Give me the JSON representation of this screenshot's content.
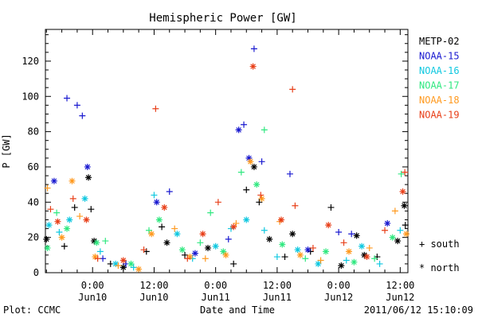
{
  "chart_data": {
    "type": "scatter",
    "title": "Hemispheric Power [GW]",
    "xlabel": "Date and Time",
    "ylabel": "P [GW]",
    "x_unit": "hours relative to 2011-06-10 00:00 UT",
    "xlim": [
      -9.2,
      61.5
    ],
    "ylim": [
      0,
      138
    ],
    "yticks": [
      0,
      20,
      40,
      60,
      80,
      100,
      120
    ],
    "xticks": [
      {
        "x": 0,
        "time": "0:00",
        "date": "Jun10"
      },
      {
        "x": 12,
        "time": "12:00",
        "date": "Jun10"
      },
      {
        "x": 24,
        "time": "0:00",
        "date": "Jun11"
      },
      {
        "x": 36,
        "time": "12:00",
        "date": "Jun11"
      },
      {
        "x": 48,
        "time": "0:00",
        "date": "Jun12"
      },
      {
        "x": 60,
        "time": "12:00",
        "date": "Jun12"
      }
    ],
    "marker_legend": [
      {
        "symbol": "+",
        "label": "south"
      },
      {
        "symbol": "*",
        "label": "north"
      }
    ],
    "series": [
      {
        "name": "METP-02",
        "color": "#000000",
        "points": [
          {
            "x": -9.0,
            "y": 19,
            "m": "*"
          },
          {
            "x": -5.5,
            "y": 15,
            "m": "+"
          },
          {
            "x": -3.5,
            "y": 37,
            "m": "+"
          },
          {
            "x": -0.8,
            "y": 54,
            "m": "*"
          },
          {
            "x": -0.3,
            "y": 36,
            "m": "+"
          },
          {
            "x": 0.3,
            "y": 18,
            "m": "*"
          },
          {
            "x": 3.5,
            "y": 5,
            "m": "+"
          },
          {
            "x": 6.0,
            "y": 3,
            "m": "*"
          },
          {
            "x": 10.5,
            "y": 12,
            "m": "+"
          },
          {
            "x": 13.5,
            "y": 26,
            "m": "+"
          },
          {
            "x": 14.5,
            "y": 17,
            "m": "*"
          },
          {
            "x": 18.0,
            "y": 10,
            "m": "+"
          },
          {
            "x": 22.5,
            "y": 14,
            "m": "*"
          },
          {
            "x": 27.5,
            "y": 5,
            "m": "+"
          },
          {
            "x": 30.0,
            "y": 47,
            "m": "+"
          },
          {
            "x": 31.5,
            "y": 60,
            "m": "*"
          },
          {
            "x": 32.5,
            "y": 40,
            "m": "+"
          },
          {
            "x": 34.5,
            "y": 19,
            "m": "*"
          },
          {
            "x": 37.5,
            "y": 9,
            "m": "+"
          },
          {
            "x": 39.0,
            "y": 22,
            "m": "*"
          },
          {
            "x": 42.5,
            "y": 12,
            "m": "+"
          },
          {
            "x": 46.5,
            "y": 37,
            "m": "+"
          },
          {
            "x": 48.5,
            "y": 4,
            "m": "*"
          },
          {
            "x": 51.5,
            "y": 21,
            "m": "*"
          },
          {
            "x": 53.0,
            "y": 10,
            "m": "*"
          },
          {
            "x": 55.5,
            "y": 9,
            "m": "+"
          },
          {
            "x": 59.5,
            "y": 18,
            "m": "*"
          },
          {
            "x": 60.8,
            "y": 38,
            "m": "*"
          },
          {
            "x": 61.0,
            "y": 27,
            "m": "+"
          }
        ]
      },
      {
        "name": "NOAA-15",
        "color": "#1a1ad0",
        "points": [
          {
            "x": -7.5,
            "y": 52,
            "m": "*"
          },
          {
            "x": -5.0,
            "y": 99,
            "m": "+"
          },
          {
            "x": -3.0,
            "y": 95,
            "m": "+"
          },
          {
            "x": -2.0,
            "y": 89,
            "m": "+"
          },
          {
            "x": -1.0,
            "y": 60,
            "m": "*"
          },
          {
            "x": 2.0,
            "y": 8,
            "m": "+"
          },
          {
            "x": 6.5,
            "y": 5,
            "m": "+"
          },
          {
            "x": 12.5,
            "y": 40,
            "m": "*"
          },
          {
            "x": 15.0,
            "y": 46,
            "m": "+"
          },
          {
            "x": 20.0,
            "y": 11,
            "m": "*"
          },
          {
            "x": 26.5,
            "y": 19,
            "m": "+"
          },
          {
            "x": 28.5,
            "y": 81,
            "m": "*"
          },
          {
            "x": 29.5,
            "y": 84,
            "m": "+"
          },
          {
            "x": 30.5,
            "y": 65,
            "m": "*"
          },
          {
            "x": 31.5,
            "y": 127,
            "m": "+"
          },
          {
            "x": 33.0,
            "y": 63,
            "m": "+"
          },
          {
            "x": 38.5,
            "y": 56,
            "m": "+"
          },
          {
            "x": 42.0,
            "y": 13,
            "m": "*"
          },
          {
            "x": 48.0,
            "y": 23,
            "m": "+"
          },
          {
            "x": 50.5,
            "y": 22,
            "m": "+"
          },
          {
            "x": 57.5,
            "y": 28,
            "m": "*"
          }
        ]
      },
      {
        "name": "NOAA-16",
        "color": "#10c8e0",
        "points": [
          {
            "x": -8.5,
            "y": 27,
            "m": "*"
          },
          {
            "x": -6.5,
            "y": 23,
            "m": "+"
          },
          {
            "x": -4.5,
            "y": 30,
            "m": "*"
          },
          {
            "x": -1.5,
            "y": 42,
            "m": "*"
          },
          {
            "x": 1.5,
            "y": 12,
            "m": "+"
          },
          {
            "x": 4.5,
            "y": 5,
            "m": "*"
          },
          {
            "x": 8.0,
            "y": 3,
            "m": "+"
          },
          {
            "x": 12.0,
            "y": 44,
            "m": "+"
          },
          {
            "x": 16.5,
            "y": 22,
            "m": "*"
          },
          {
            "x": 19.5,
            "y": 8,
            "m": "+"
          },
          {
            "x": 24.0,
            "y": 15,
            "m": "*"
          },
          {
            "x": 27.0,
            "y": 25,
            "m": "+"
          },
          {
            "x": 30.0,
            "y": 30,
            "m": "*"
          },
          {
            "x": 33.5,
            "y": 24,
            "m": "+"
          },
          {
            "x": 36.0,
            "y": 9,
            "m": "+"
          },
          {
            "x": 40.0,
            "y": 13,
            "m": "*"
          },
          {
            "x": 44.0,
            "y": 5,
            "m": "*"
          },
          {
            "x": 49.5,
            "y": 7,
            "m": "+"
          },
          {
            "x": 52.5,
            "y": 15,
            "m": "*"
          },
          {
            "x": 56.0,
            "y": 5,
            "m": "+"
          },
          {
            "x": 60.0,
            "y": 24,
            "m": "+"
          }
        ]
      },
      {
        "name": "NOAA-17",
        "color": "#30e880",
        "points": [
          {
            "x": -8.8,
            "y": 14,
            "m": "*"
          },
          {
            "x": -7.0,
            "y": 34,
            "m": "+"
          },
          {
            "x": -5.0,
            "y": 25,
            "m": "*"
          },
          {
            "x": 0.8,
            "y": 17,
            "m": "*"
          },
          {
            "x": 2.5,
            "y": 18,
            "m": "+"
          },
          {
            "x": 7.5,
            "y": 5,
            "m": "*"
          },
          {
            "x": 11.0,
            "y": 24,
            "m": "+"
          },
          {
            "x": 13.0,
            "y": 30,
            "m": "*"
          },
          {
            "x": 17.5,
            "y": 13,
            "m": "*"
          },
          {
            "x": 21.0,
            "y": 17,
            "m": "+"
          },
          {
            "x": 23.0,
            "y": 34,
            "m": "+"
          },
          {
            "x": 25.5,
            "y": 12,
            "m": "*"
          },
          {
            "x": 29.0,
            "y": 57,
            "m": "+"
          },
          {
            "x": 32.0,
            "y": 50,
            "m": "*"
          },
          {
            "x": 33.5,
            "y": 81,
            "m": "+"
          },
          {
            "x": 37.0,
            "y": 16,
            "m": "*"
          },
          {
            "x": 41.5,
            "y": 8,
            "m": "+"
          },
          {
            "x": 45.5,
            "y": 12,
            "m": "*"
          },
          {
            "x": 51.0,
            "y": 6,
            "m": "*"
          },
          {
            "x": 55.0,
            "y": 8,
            "m": "+"
          },
          {
            "x": 58.5,
            "y": 20,
            "m": "*"
          },
          {
            "x": 60.2,
            "y": 56,
            "m": "+"
          }
        ]
      },
      {
        "name": "NOAA-18",
        "color": "#ff9a20",
        "points": [
          {
            "x": -8.8,
            "y": 48,
            "m": "+"
          },
          {
            "x": -6.0,
            "y": 20,
            "m": "*"
          },
          {
            "x": -4.0,
            "y": 52,
            "m": "*"
          },
          {
            "x": -2.5,
            "y": 32,
            "m": "+"
          },
          {
            "x": 0.5,
            "y": 9,
            "m": "*"
          },
          {
            "x": 5.0,
            "y": 4,
            "m": "+"
          },
          {
            "x": 9.0,
            "y": 2,
            "m": "*"
          },
          {
            "x": 11.5,
            "y": 22,
            "m": "*"
          },
          {
            "x": 16.0,
            "y": 25,
            "m": "+"
          },
          {
            "x": 19.0,
            "y": 9,
            "m": "*"
          },
          {
            "x": 22.0,
            "y": 8,
            "m": "+"
          },
          {
            "x": 26.0,
            "y": 10,
            "m": "*"
          },
          {
            "x": 28.0,
            "y": 28,
            "m": "+"
          },
          {
            "x": 30.8,
            "y": 63,
            "m": "*"
          },
          {
            "x": 33.0,
            "y": 42,
            "m": "*"
          },
          {
            "x": 36.5,
            "y": 29,
            "m": "+"
          },
          {
            "x": 40.5,
            "y": 10,
            "m": "*"
          },
          {
            "x": 44.5,
            "y": 7,
            "m": "+"
          },
          {
            "x": 50.0,
            "y": 12,
            "m": "*"
          },
          {
            "x": 54.0,
            "y": 14,
            "m": "+"
          },
          {
            "x": 59.0,
            "y": 35,
            "m": "+"
          },
          {
            "x": 61.2,
            "y": 22,
            "m": "*"
          }
        ]
      },
      {
        "name": "NOAA-19",
        "color": "#e8401a",
        "points": [
          {
            "x": -8.2,
            "y": 36,
            "m": "+"
          },
          {
            "x": -6.8,
            "y": 29,
            "m": "*"
          },
          {
            "x": -3.8,
            "y": 42,
            "m": "+"
          },
          {
            "x": -1.2,
            "y": 30,
            "m": "*"
          },
          {
            "x": 1.0,
            "y": 8,
            "m": "+"
          },
          {
            "x": 6.0,
            "y": 7,
            "m": "*"
          },
          {
            "x": 10.0,
            "y": 13,
            "m": "+"
          },
          {
            "x": 12.3,
            "y": 93,
            "m": "+"
          },
          {
            "x": 14.0,
            "y": 37,
            "m": "*"
          },
          {
            "x": 18.5,
            "y": 8,
            "m": "+"
          },
          {
            "x": 21.5,
            "y": 22,
            "m": "*"
          },
          {
            "x": 24.5,
            "y": 40,
            "m": "+"
          },
          {
            "x": 27.5,
            "y": 26,
            "m": "*"
          },
          {
            "x": 31.3,
            "y": 117,
            "m": "*"
          },
          {
            "x": 32.8,
            "y": 44,
            "m": "+"
          },
          {
            "x": 36.8,
            "y": 30,
            "m": "*"
          },
          {
            "x": 39.0,
            "y": 104,
            "m": "+"
          },
          {
            "x": 39.5,
            "y": 38,
            "m": "+"
          },
          {
            "x": 43.0,
            "y": 14,
            "m": "+"
          },
          {
            "x": 46.0,
            "y": 27,
            "m": "*"
          },
          {
            "x": 49.0,
            "y": 17,
            "m": "+"
          },
          {
            "x": 53.5,
            "y": 9,
            "m": "*"
          },
          {
            "x": 57.0,
            "y": 24,
            "m": "+"
          },
          {
            "x": 60.5,
            "y": 46,
            "m": "*"
          },
          {
            "x": 60.9,
            "y": 57,
            "m": "+"
          }
        ]
      }
    ]
  },
  "footer": {
    "plot_credit": "Plot: CCMC",
    "timestamp": "2011/06/12 15:10:09"
  }
}
